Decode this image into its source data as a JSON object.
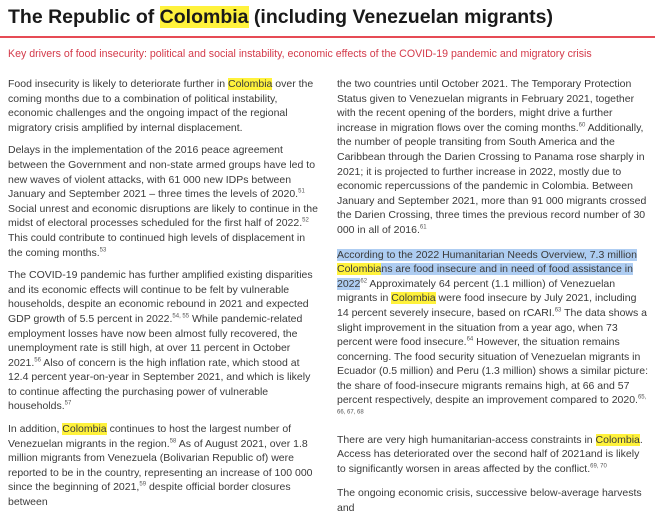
{
  "title": {
    "before": "The Republic of ",
    "highlight": "Colombia",
    "after": " (including Venezuelan migrants)"
  },
  "subtitle": "Key drivers of food insecurity: political and social instability, economic effects of the COVID-19 pandemic and migratory crisis",
  "left": {
    "p1": {
      "a": "Food insecurity is likely to deteriorate further in ",
      "hl": "Colombia",
      "b": " over the coming months due to a combination of political instability, economic challenges and the ongoing impact of the regional migratory crisis amplified by internal displacement."
    },
    "p2": {
      "a": "Delays in the implementation of the 2016 peace agreement between the Government and non-state armed groups have led to new waves of violent attacks, with 61 000 new IDPs between January and September 2021 – three times the levels of 2020.",
      "s1": "51",
      "b": " Social unrest and economic disruptions are likely to continue in the midst of electoral processes scheduled for the first half of 2022.",
      "s2": "52",
      "c": " This could contribute to continued high levels of displacement in the coming months.",
      "s3": "53"
    },
    "p3": {
      "a": "The COVID-19 pandemic has further amplified existing disparities and its economic effects will continue to be felt by vulnerable households, despite an economic rebound in 2021 and expected GDP growth of 5.5 percent in 2022.",
      "s1": "54, 55",
      "b": " While pandemic-related employment losses have now been almost fully recovered, the unemployment rate is still high, at over 11 percent in October 2021.",
      "s2": "56",
      "c": " Also of concern is the high inflation rate, which stood at 12.4 percent year-on-year in September 2021, and which is likely to continue affecting the purchasing power of vulnerable households.",
      "s3": "57"
    },
    "p4": {
      "a": "In addition, ",
      "hl": "Colombia",
      "b": " continues to host the largest number of Venezuelan migrants in the region.",
      "s1": "58",
      "c": " As of August 2021, over 1.8 million migrants from Venezuela (Bolivarian Republic of) were reported to be in the country, representing an increase of 100 000 since the beginning of 2021,",
      "s2": "59",
      "d": " despite official border closures between"
    }
  },
  "right": {
    "p1": {
      "a": "the two countries until October 2021. The Temporary Protection Status given to Venezuelan migrants in February 2021, together with the recent opening of the borders, might drive a further increase in migration flows over the coming months.",
      "s1": "60",
      "b": " Additionally, the number of people transiting from South America and the Caribbean through the Darien Crossing to Panama rose sharply in 2021; it is projected to further increase in 2022, mostly due to economic repercussions of the pandemic in Colombia. Between January and September 2021, more than 91 000 migrants crossed the Darien Crossing, three times the previous record number of 30 000 in all of 2016.",
      "s2": "61"
    },
    "p2": {
      "sel_a": "According to the 2022 Humanitarian Needs Overview, 7.3 million ",
      "sel_hl": "Colombia",
      "sel_b": "ns are food insecure and in need of food assistance in 2022",
      "s1": "62",
      "a": " Approximately 64 percent (1.1 million) of Venezuelan migrants in ",
      "hl": "Colombia",
      "b": " were food insecure by July 2021, including 14 percent severely insecure, based on rCARI.",
      "s2": "63",
      "c": " The data shows a slight improvement in the situation from a year ago, when 73 percent were food insecure.",
      "s3": "64",
      "d": " However, the situation remains concerning. The food security situation of Venezuelan migrants in Ecuador (0.5 million) and Peru (1.3 million) shows a similar picture: the share of food-insecure migrants remains high, at 66 and 57 percent respectively, despite an improvement compared to 2020.",
      "s4": "65, 66, 67, 68"
    },
    "p3": {
      "a": "There are very high humanitarian-access constraints in ",
      "hl": "Colombia",
      "b": ". Access has deteriorated over the second half of 2021and is likely to significantly worsen in areas affected by the conflict.",
      "s1": "69, 70"
    },
    "p4": {
      "a": "The ongoing economic crisis, successive below-average harvests and"
    }
  }
}
